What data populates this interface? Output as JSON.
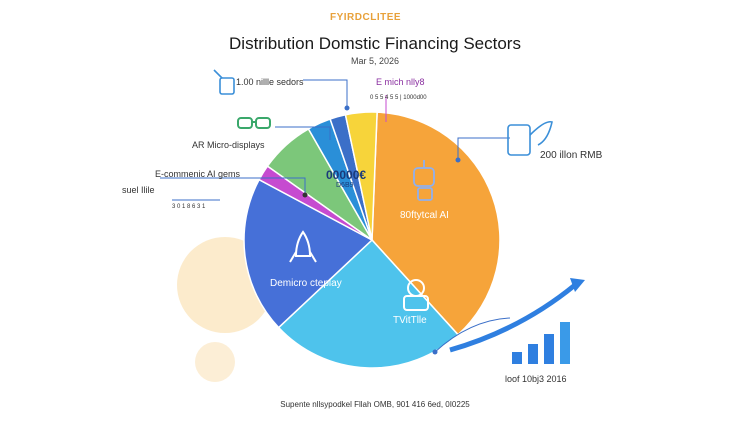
{
  "header": {
    "brand": "FYIRDCLITEE",
    "title": "Distribution Domstic Financing Sectors",
    "date": "Mar 5, 2026"
  },
  "chart_data": {
    "type": "pie",
    "title": "Distribution Domstic Financing Sectors",
    "slices": [
      {
        "label": "Demicro cteplay",
        "value": 38,
        "color": "#f6a43a"
      },
      {
        "label": "TVitTlle",
        "value": 25,
        "color": "#4ec3ec"
      },
      {
        "label": "80ftytcal AI",
        "value": 20,
        "color": "#4670d8"
      },
      {
        "label": "",
        "value": 2,
        "color": "#c64bd0"
      },
      {
        "label": "",
        "value": 7,
        "color": "#7cc77a"
      },
      {
        "label": "",
        "value": 3,
        "color": "#2a8fd8"
      },
      {
        "label": "",
        "value": 2,
        "color": "#3b6fc8"
      },
      {
        "label": "",
        "value": 4,
        "color": "#f7d43a"
      }
    ],
    "center_label": "00000€",
    "center_sub": "D6B9"
  },
  "callouts": {
    "top_left": "1.00 nillle sedors",
    "top_mid": "E mich nlly8",
    "top_mid_sub": "0 5 5 4 5 5 | 1000d00",
    "ar": "AR Micro-displays",
    "ecom": "E-commenic AI gems",
    "suel": "suel Ilile",
    "suel_sub": "3 0 1 8 6 3 1",
    "right": "200 illon RMB",
    "growth": "loof 10bj3 2016"
  },
  "footer": "Supente nllsypodkel Fllah OMB, 901 416 6ed, 0I0225"
}
